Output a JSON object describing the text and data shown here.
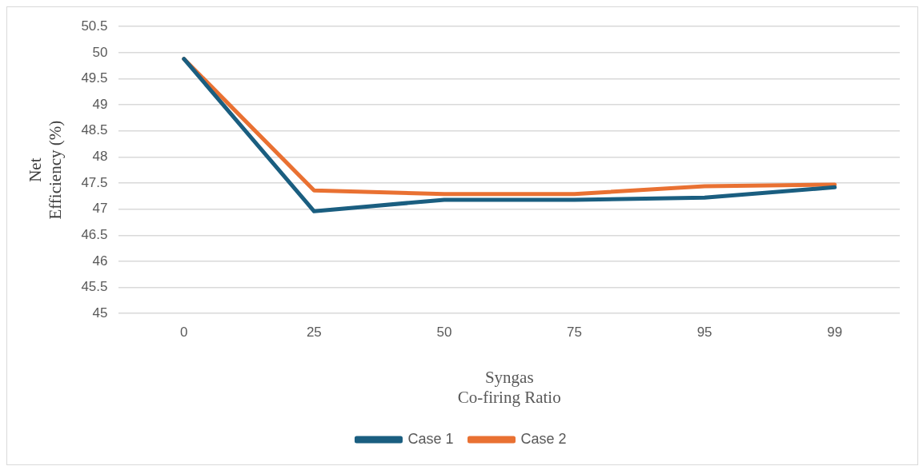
{
  "chart_data": {
    "type": "line",
    "xlabel": "Syngas\nCo-firing Ratio",
    "ylabel": "Net\nEfficiency (%)",
    "categories": [
      "0",
      "25",
      "50",
      "75",
      "95",
      "99"
    ],
    "series": [
      {
        "name": "Case 1",
        "color": "#1a5e80",
        "values": [
          49.88,
          46.96,
          47.18,
          47.18,
          47.22,
          47.42
        ]
      },
      {
        "name": "Case 2",
        "color": "#e97132",
        "values": [
          49.88,
          47.36,
          47.29,
          47.29,
          47.44,
          47.47
        ]
      }
    ],
    "ylim": [
      45,
      50.5
    ],
    "yticks": [
      45,
      45.5,
      46,
      46.5,
      47,
      47.5,
      48,
      48.5,
      49,
      49.5,
      50,
      50.5
    ],
    "grid": "y",
    "legend": "bottom",
    "marker": "none",
    "line_style": "solid"
  }
}
